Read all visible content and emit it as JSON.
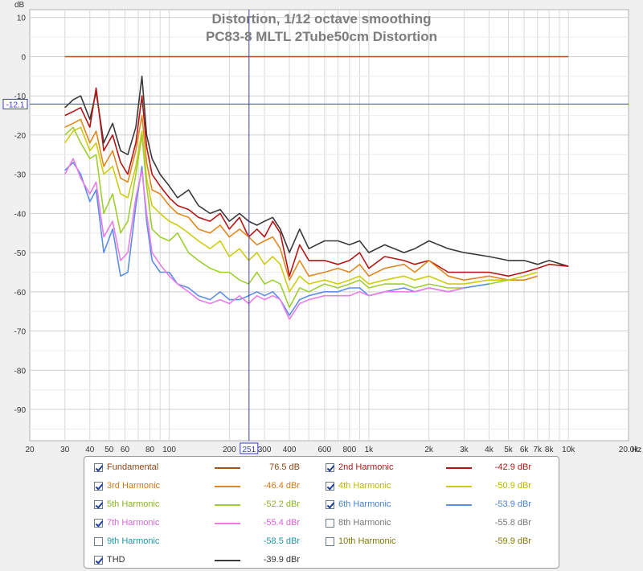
{
  "chart_data": {
    "type": "line",
    "title": "Distortion, 1/12 octave smoothing",
    "subtitle": "PC83-8 MLTL 2Tube50cm Distortion",
    "ylabel": "dB",
    "xunit": "Hz",
    "xscale": "log",
    "xlim": [
      20,
      20000
    ],
    "ylim": [
      -98,
      12
    ],
    "grid": true,
    "yticks": [
      "10",
      "0",
      "-10",
      "-20",
      "-30",
      "-40",
      "-50",
      "-60",
      "-70",
      "-80",
      "-90"
    ],
    "ytick_values": [
      10,
      0,
      -10,
      -20,
      -30,
      -40,
      -50,
      -60,
      -70,
      -80,
      -90
    ],
    "xticks": [
      "20",
      "30",
      "40",
      "50",
      "60",
      "80",
      "100",
      "200",
      "300",
      "400",
      "600",
      "800",
      "1k",
      "2k",
      "3k",
      "4k",
      "5k",
      "6k",
      "7k",
      "8k",
      "10k",
      "20.0k"
    ],
    "xtick_values": [
      20,
      30,
      40,
      50,
      60,
      80,
      100,
      200,
      300,
      400,
      600,
      800,
      1000,
      2000,
      3000,
      4000,
      5000,
      6000,
      7000,
      8000,
      10000,
      20000
    ],
    "cursor": {
      "y_label": "-12.1",
      "y_value": -12.1,
      "x_label": "251",
      "x_value": 251
    },
    "series": [
      {
        "name": "Fundamental",
        "color": "#a0521e",
        "x": [
          30,
          10000
        ],
        "y": [
          0,
          0
        ]
      },
      {
        "name": "THD",
        "color": "#3a3a3a",
        "x": [
          30,
          33,
          36,
          40,
          43,
          47,
          52,
          57,
          62,
          68,
          73,
          77,
          82,
          90,
          100,
          110,
          125,
          140,
          160,
          180,
          200,
          225,
          250,
          275,
          300,
          330,
          360,
          400,
          450,
          500,
          600,
          700,
          800,
          900,
          1000,
          1200,
          1500,
          1700,
          2000,
          2500,
          3000,
          4000,
          5000,
          6000,
          7000,
          8000,
          10000
        ],
        "y": [
          -13,
          -11,
          -10,
          -16,
          -9,
          -22,
          -17,
          -24,
          -25,
          -18,
          -5,
          -20,
          -26,
          -30,
          -33,
          -36,
          -34,
          -38,
          -40,
          -39,
          -42,
          -40,
          -42,
          -43,
          -42,
          -41,
          -44,
          -50,
          -44,
          -49,
          -47,
          -47,
          -48,
          -47,
          -50,
          -48,
          -50,
          -49,
          -47,
          -49,
          -50,
          -51,
          -52,
          -52,
          -53,
          -52,
          -53.5
        ]
      },
      {
        "name": "2nd Harmonic",
        "color": "#b51515",
        "x": [
          30,
          33,
          36,
          40,
          43,
          47,
          52,
          57,
          62,
          68,
          73,
          77,
          82,
          90,
          100,
          110,
          125,
          140,
          160,
          180,
          200,
          225,
          250,
          275,
          300,
          330,
          360,
          400,
          450,
          500,
          600,
          700,
          800,
          900,
          1000,
          1200,
          1500,
          1700,
          2000,
          2500,
          3000,
          4000,
          5000,
          6000,
          7000,
          8000,
          10000
        ],
        "y": [
          -15,
          -14,
          -13,
          -18,
          -8,
          -24,
          -20,
          -27,
          -30,
          -22,
          -10,
          -23,
          -30,
          -33,
          -36,
          -38,
          -39,
          -41,
          -42,
          -40,
          -44,
          -41,
          -46,
          -44,
          -46,
          -42,
          -45,
          -56,
          -48,
          -52,
          -52,
          -53,
          -52,
          -50,
          -54,
          -51,
          -52,
          -53,
          -52,
          -55,
          -55,
          -55,
          -56,
          -55,
          -54,
          -53,
          -53.5
        ]
      },
      {
        "name": "3rd Harmonic",
        "color": "#e0881f",
        "x": [
          30,
          33,
          36,
          40,
          43,
          47,
          52,
          57,
          62,
          68,
          73,
          77,
          82,
          90,
          100,
          110,
          125,
          140,
          160,
          180,
          200,
          225,
          250,
          275,
          300,
          330,
          360,
          400,
          450,
          500,
          600,
          700,
          800,
          900,
          1000,
          1200,
          1500,
          1700,
          2000,
          2500,
          3000,
          4000,
          5000,
          6000,
          7000
        ],
        "y": [
          -18,
          -17,
          -16,
          -22,
          -19,
          -28,
          -24,
          -31,
          -32,
          -24,
          -15,
          -27,
          -34,
          -35,
          -38,
          -40,
          -41,
          -44,
          -45,
          -43,
          -46,
          -44,
          -46,
          -48,
          -47,
          -46,
          -49,
          -57,
          -52,
          -56,
          -55,
          -54,
          -55,
          -53,
          -56,
          -54,
          -53,
          -55,
          -52,
          -56,
          -57,
          -56,
          -57,
          -57,
          -56
        ]
      },
      {
        "name": "4th Harmonic",
        "color": "#cfcc10",
        "x": [
          30,
          33,
          36,
          40,
          43,
          47,
          52,
          57,
          62,
          68,
          73,
          77,
          82,
          90,
          100,
          110,
          125,
          140,
          160,
          180,
          200,
          225,
          250,
          275,
          300,
          330,
          360,
          400,
          450,
          500,
          600,
          700,
          800,
          900,
          1000,
          1200,
          1500,
          1700,
          2000,
          2500,
          3000,
          4000,
          5000,
          6000,
          7000
        ],
        "y": [
          -22,
          -19,
          -18,
          -24,
          -22,
          -30,
          -28,
          -35,
          -36,
          -28,
          -19,
          -31,
          -38,
          -40,
          -42,
          -43,
          -45,
          -47,
          -49,
          -47,
          -51,
          -49,
          -52,
          -50,
          -53,
          -51,
          -53,
          -60,
          -56,
          -58,
          -57,
          -58,
          -57,
          -56,
          -58,
          -57,
          -56,
          -57,
          -56,
          -58,
          -58,
          -57,
          -57,
          -56,
          -55
        ]
      },
      {
        "name": "5th Harmonic",
        "color": "#9fcf2f",
        "x": [
          30,
          33,
          36,
          40,
          43,
          47,
          52,
          57,
          62,
          68,
          73,
          77,
          82,
          90,
          100,
          110,
          125,
          140,
          160,
          180,
          200,
          225,
          250,
          275,
          300,
          330,
          360,
          400,
          450,
          500,
          600,
          700,
          800,
          900,
          1000,
          1200,
          1500,
          1700,
          2000,
          2500,
          3000,
          4000,
          5000
        ],
        "y": [
          -20,
          -18,
          -22,
          -26,
          -25,
          -40,
          -35,
          -45,
          -42,
          -30,
          -20,
          -33,
          -44,
          -46,
          -47,
          -45,
          -50,
          -52,
          -54,
          -55,
          -55,
          -57,
          -58,
          -55,
          -58,
          -57,
          -58,
          -64,
          -59,
          -60,
          -58,
          -59,
          -58,
          -57,
          -59,
          -58,
          -58,
          -59,
          -58,
          -59,
          -59,
          -58,
          -57
        ]
      },
      {
        "name": "6th Harmonic",
        "color": "#5b8ee6",
        "x": [
          30,
          33,
          36,
          40,
          43,
          47,
          52,
          57,
          62,
          68,
          73,
          77,
          82,
          90,
          100,
          110,
          125,
          140,
          160,
          180,
          200,
          225,
          250,
          275,
          300,
          330,
          360,
          400,
          450,
          500,
          600,
          700,
          800,
          900,
          1000,
          1200,
          1500,
          1700,
          2000,
          2500,
          3000,
          4000
        ],
        "y": [
          -29,
          -27,
          -30,
          -37,
          -34,
          -50,
          -44,
          -56,
          -55,
          -38,
          -28,
          -42,
          -52,
          -55,
          -55,
          -58,
          -59,
          -61,
          -62,
          -60,
          -62,
          -62,
          -61,
          -60,
          -61,
          -60,
          -62,
          -66,
          -62,
          -61,
          -60,
          -60,
          -59,
          -59,
          -61,
          -60,
          -59,
          -60,
          -59,
          -60,
          -59,
          -58
        ]
      },
      {
        "name": "7th Harmonic",
        "color": "#ea7cea",
        "x": [
          30,
          33,
          36,
          40,
          43,
          47,
          52,
          57,
          62,
          68,
          73,
          77,
          82,
          90,
          100,
          110,
          125,
          140,
          160,
          180,
          200,
          225,
          250,
          275,
          300,
          330,
          360,
          400,
          450,
          500,
          600,
          700,
          800,
          900,
          1000,
          1200,
          1500,
          1700,
          2000,
          2500,
          3000
        ],
        "y": [
          -30,
          -26,
          -31,
          -35,
          -32,
          -46,
          -42,
          -52,
          -50,
          -36,
          -29,
          -40,
          -50,
          -53,
          -56,
          -58,
          -60,
          -62,
          -63,
          -62,
          -63,
          -61,
          -63,
          -61,
          -62,
          -61,
          -62,
          -67,
          -63,
          -62,
          -61,
          -61,
          -61,
          -60,
          -61,
          -60,
          -60,
          -60,
          -59,
          -60,
          -59
        ]
      }
    ]
  },
  "legend": {
    "items": [
      {
        "label": "Fundamental",
        "value": "76.5 dB",
        "checked": true,
        "color": "#a0521e",
        "label_color": "#8b4513",
        "value_color": "#8b4513"
      },
      {
        "label": "2nd Harmonic",
        "value": "-42.9 dBr",
        "checked": true,
        "color": "#b51515",
        "label_color": "#b51515",
        "value_color": "#b51515"
      },
      {
        "label": "3rd Harmonic",
        "value": "-46.4 dBr",
        "checked": true,
        "color": "#e0881f",
        "label_color": "#d2781a",
        "value_color": "#d2781a"
      },
      {
        "label": "4th Harmonic",
        "value": "-50.9 dBr",
        "checked": true,
        "color": "#cfcc10",
        "label_color": "#bcb600",
        "value_color": "#bcb600"
      },
      {
        "label": "5th Harmonic",
        "value": "-52.2 dBr",
        "checked": true,
        "color": "#9fcf2f",
        "label_color": "#8ab420",
        "value_color": "#8ab420"
      },
      {
        "label": "6th Harmonic",
        "value": "-53.9 dBr",
        "checked": true,
        "color": "#5b8ee6",
        "label_color": "#4a7fd6",
        "value_color": "#4a7fd6"
      },
      {
        "label": "7th Harmonic",
        "value": "-55.4 dBr",
        "checked": true,
        "color": "#ea7cea",
        "label_color": "#d864d8",
        "value_color": "#d864d8"
      },
      {
        "label": "8th Harmonic",
        "value": "-55.8 dBr",
        "checked": false,
        "color": "",
        "label_color": "#777777",
        "value_color": "#777777"
      },
      {
        "label": "9th Harmonic",
        "value": "-58.5 dBr",
        "checked": false,
        "color": "",
        "label_color": "#1a9aa8",
        "value_color": "#1a9aa8"
      },
      {
        "label": "10th Harmonic",
        "value": "-59.9 dBr",
        "checked": false,
        "color": "",
        "label_color": "#7d7a00",
        "value_color": "#7d7a00"
      },
      {
        "label": "THD",
        "value": "-39.9 dBr",
        "checked": true,
        "color": "#3a3a3a",
        "label_color": "#333333",
        "value_color": "#333333"
      }
    ]
  }
}
